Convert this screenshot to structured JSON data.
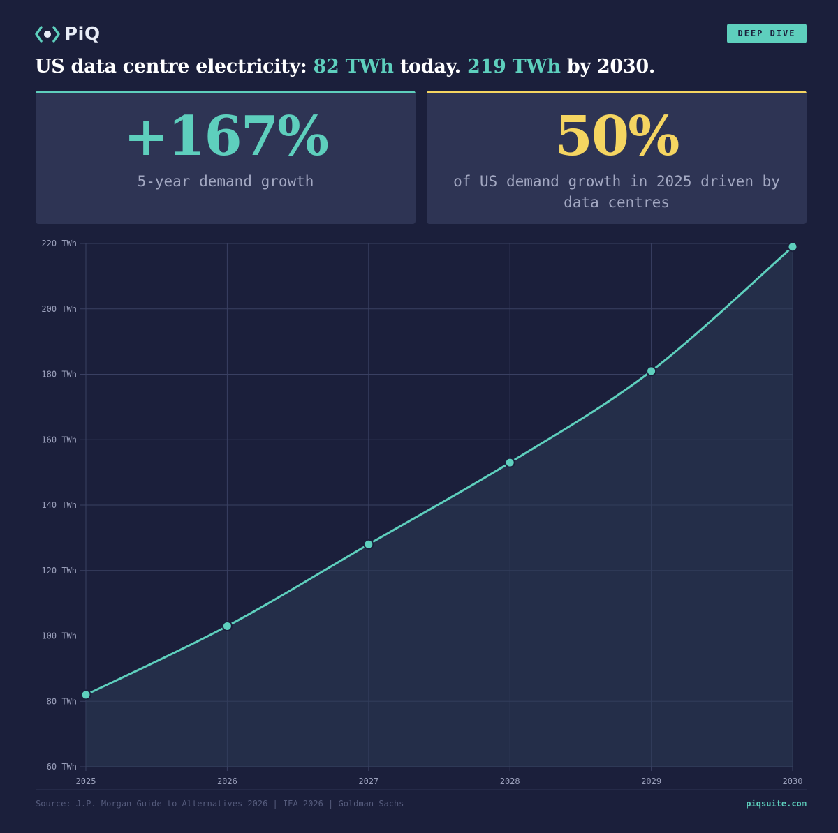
{
  "brand": {
    "logo_text": "PiQ",
    "logo_icon": "piq-bracket-eye-icon",
    "badge": "DEEP DIVE",
    "url": "piqsuite.com"
  },
  "headline": {
    "part1": "US data centre electricity: ",
    "value1": "82 TWh",
    "part2": " today. ",
    "value2": "219 TWh",
    "part3": " by 2030."
  },
  "stats": [
    {
      "value": "+167%",
      "label": "5-year demand growth",
      "color": "#5ecfbd"
    },
    {
      "value": "50%",
      "label": "of US demand growth in 2025 driven by data centres",
      "color": "#f5d561"
    }
  ],
  "colors": {
    "background": "#1b1f3b",
    "accent": "#5ecfbd",
    "highlight": "#f5d561",
    "card": "#2e3454"
  },
  "chart_data": {
    "type": "area",
    "x": [
      2025,
      2026,
      2027,
      2028,
      2029,
      2030
    ],
    "values": [
      82,
      103,
      128,
      153,
      181,
      219
    ],
    "ylim": [
      60,
      220
    ],
    "yticks": [
      60,
      80,
      100,
      120,
      140,
      160,
      180,
      200,
      220
    ],
    "ytick_suffix": " TWh",
    "xlabel": "",
    "ylabel": "",
    "grid": true
  },
  "footer": {
    "source": "Source: J.P. Morgan Guide to Alternatives 2026 | IEA 2026 | Goldman Sachs"
  }
}
